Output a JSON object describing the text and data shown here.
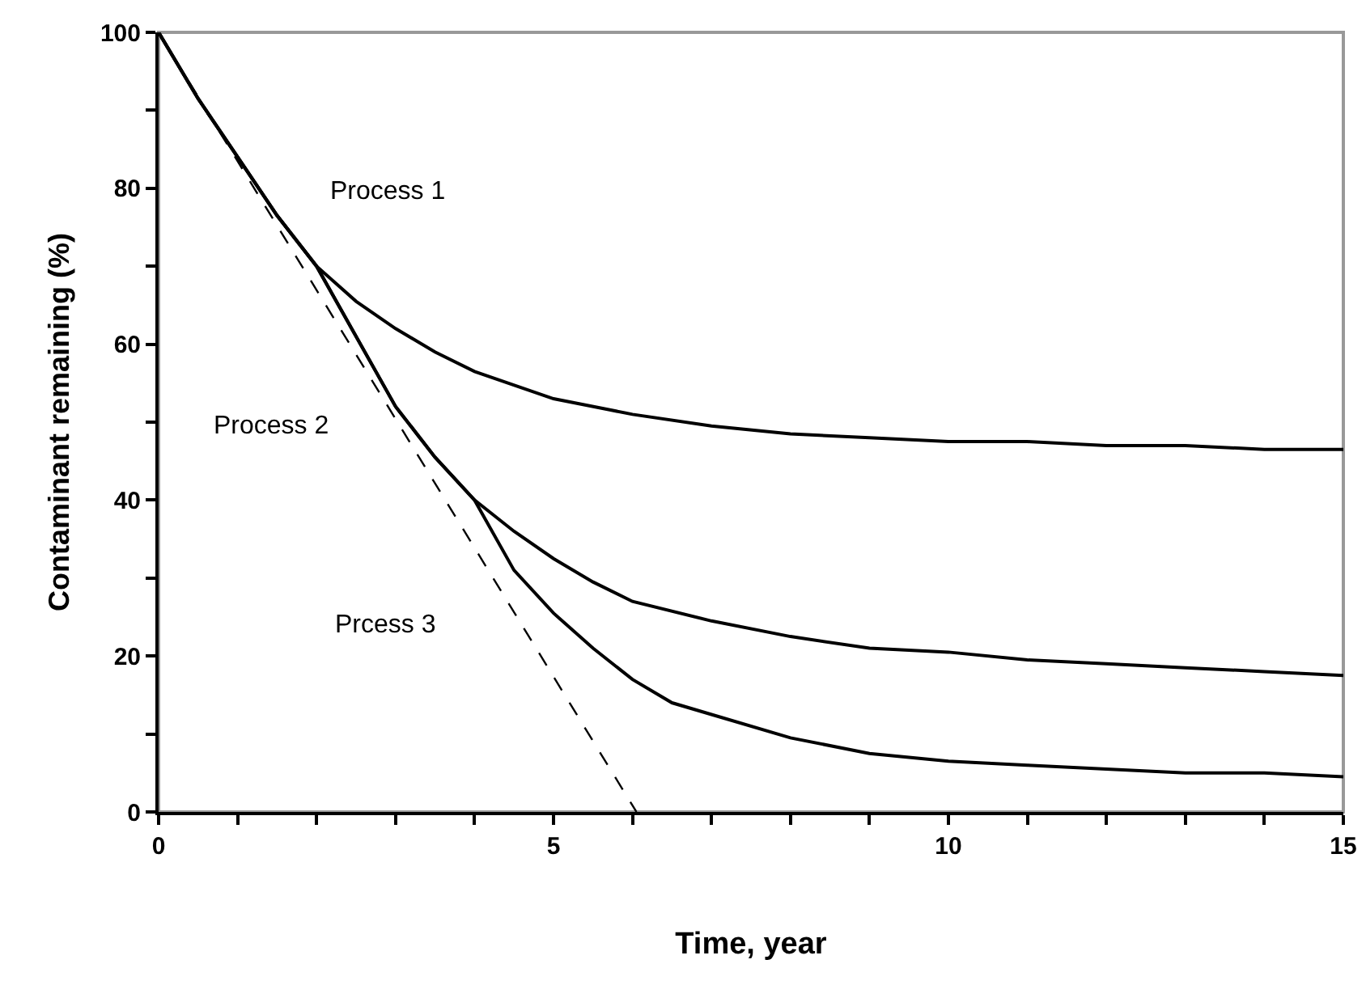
{
  "chart_data": {
    "type": "line",
    "xlabel": "Time, year",
    "ylabel": "Contaminant remaining (%)",
    "xlim": [
      0,
      15
    ],
    "ylim": [
      0,
      100
    ],
    "xticks": [
      0,
      {
        "value": 1,
        "label": null
      },
      {
        "value": 2,
        "label": null
      },
      {
        "value": 3,
        "label": null
      },
      {
        "value": 4,
        "label": null
      },
      5,
      {
        "value": 6,
        "label": null
      },
      {
        "value": 7,
        "label": null
      },
      {
        "value": 8,
        "label": null
      },
      {
        "value": 9,
        "label": null
      },
      10,
      {
        "value": 11,
        "label": null
      },
      {
        "value": 12,
        "label": null
      },
      {
        "value": 13,
        "label": null
      },
      {
        "value": 14,
        "label": null
      },
      15
    ],
    "yticks": [
      0,
      {
        "value": 10,
        "label": null
      },
      20,
      {
        "value": 30,
        "label": null
      },
      40,
      {
        "value": 50,
        "label": null
      },
      60,
      {
        "value": 70,
        "label": null
      },
      80,
      {
        "value": 90,
        "label": null
      },
      100
    ],
    "grid": false,
    "marker": "none",
    "series": [
      {
        "color": "#000000",
        "line_style": "solid",
        "x": [
          0,
          0.5,
          1,
          1.5,
          2,
          2.5,
          3,
          3.5,
          4,
          5,
          6,
          7,
          8,
          9,
          10,
          11,
          12,
          13,
          14,
          15
        ],
        "values": [
          100,
          91.5,
          84,
          76.5,
          70,
          65.5,
          62,
          59,
          56.5,
          53,
          51,
          49.5,
          48.5,
          48,
          47.5,
          47.5,
          47,
          47,
          46.5,
          46.5
        ]
      },
      {
        "color": "#000000",
        "line_style": "solid",
        "x": [
          0,
          0.5,
          1,
          1.5,
          2,
          2.5,
          3,
          3.5,
          4,
          4.5,
          5,
          5.5,
          6,
          7,
          8,
          9,
          10,
          11,
          12,
          13,
          14,
          15
        ],
        "values": [
          100,
          91.5,
          84,
          76.5,
          70,
          61,
          52,
          45.5,
          40,
          36,
          32.5,
          29.5,
          27,
          24.5,
          22.5,
          21,
          20.5,
          19.5,
          19,
          18.5,
          18,
          17.5
        ]
      },
      {
        "color": "#000000",
        "line_style": "solid",
        "x": [
          0,
          0.5,
          1,
          1.5,
          2,
          2.5,
          3,
          3.5,
          4,
          4.5,
          5,
          5.5,
          6,
          6.5,
          7,
          8,
          9,
          10,
          11,
          12,
          13,
          14,
          15
        ],
        "values": [
          100,
          91.5,
          84,
          76.5,
          70,
          61,
          52,
          45.5,
          40,
          31,
          25.5,
          21,
          17,
          14,
          12.5,
          9.5,
          7.5,
          6.5,
          6,
          5.5,
          5,
          5,
          4.5
        ]
      },
      {
        "color": "#000000",
        "line_style": "dashed",
        "x": [
          0,
          6.05
        ],
        "values": [
          100,
          0
        ]
      }
    ],
    "annotations": [
      "Process 1",
      "Process 2",
      "Prcess 3"
    ]
  }
}
